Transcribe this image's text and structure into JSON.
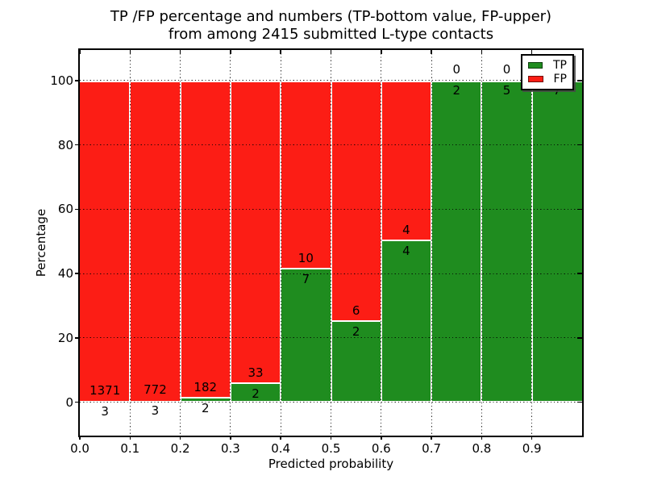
{
  "title": {
    "line1": "TP /FP percentage and numbers (TP-bottom value, FP-upper)",
    "line2": "from among 2415 submitted L-type contacts"
  },
  "axes": {
    "xlabel": "Predicted probability",
    "ylabel": "Percentage",
    "xtick_labels": [
      "0.0",
      "0.1",
      "0.2",
      "0.3",
      "0.4",
      "0.5",
      "0.6",
      "0.7",
      "0.8",
      "0.9"
    ],
    "ytick_labels": [
      "0",
      "20",
      "40",
      "60",
      "80",
      "100"
    ],
    "ytick_values": [
      0,
      20,
      40,
      60,
      80,
      100
    ]
  },
  "legend": {
    "items": [
      {
        "label": "TP",
        "color": "#1f8c1f"
      },
      {
        "label": "FP",
        "color": "#fc1d15"
      }
    ]
  },
  "chart_data": {
    "type": "bar",
    "stacked": true,
    "normalized": "percent (each bin stacks to 100)",
    "title": "TP /FP percentage and numbers (TP-bottom value, FP-upper) from among 2415 submitted L-type contacts",
    "xlabel": "Predicted probability",
    "ylabel": "Percentage",
    "xlim": [
      0.0,
      1.0
    ],
    "ylim": [
      -10.5,
      109.5
    ],
    "grid": "dotted",
    "legend_position": "upper right",
    "bin_starts": [
      0.0,
      0.1,
      0.2,
      0.3,
      0.4,
      0.5,
      0.6,
      0.7,
      0.8,
      0.9
    ],
    "bin_width": 0.1,
    "total_contacts": 2415,
    "series": [
      {
        "name": "TP",
        "color": "#1f8c1f",
        "counts": [
          3,
          3,
          2,
          2,
          7,
          2,
          4,
          2,
          5,
          7
        ],
        "percent": [
          0.22,
          0.39,
          1.09,
          5.71,
          41.18,
          25.0,
          50.0,
          100.0,
          100.0,
          100.0
        ]
      },
      {
        "name": "FP",
        "color": "#fc1d15",
        "counts": [
          1371,
          772,
          182,
          33,
          10,
          6,
          4,
          0,
          0,
          0
        ],
        "percent": [
          99.78,
          99.61,
          98.91,
          94.29,
          58.82,
          75.0,
          50.0,
          0.0,
          0.0,
          0.0
        ]
      }
    ],
    "bar_value_labels": {
      "fp": [
        "1371",
        "772",
        "182",
        "33",
        "10",
        "6",
        "4",
        "0",
        "0",
        ""
      ],
      "tp": [
        "3",
        "3",
        "2",
        "2",
        "7",
        "2",
        "4",
        "2",
        "5",
        "7"
      ]
    }
  }
}
